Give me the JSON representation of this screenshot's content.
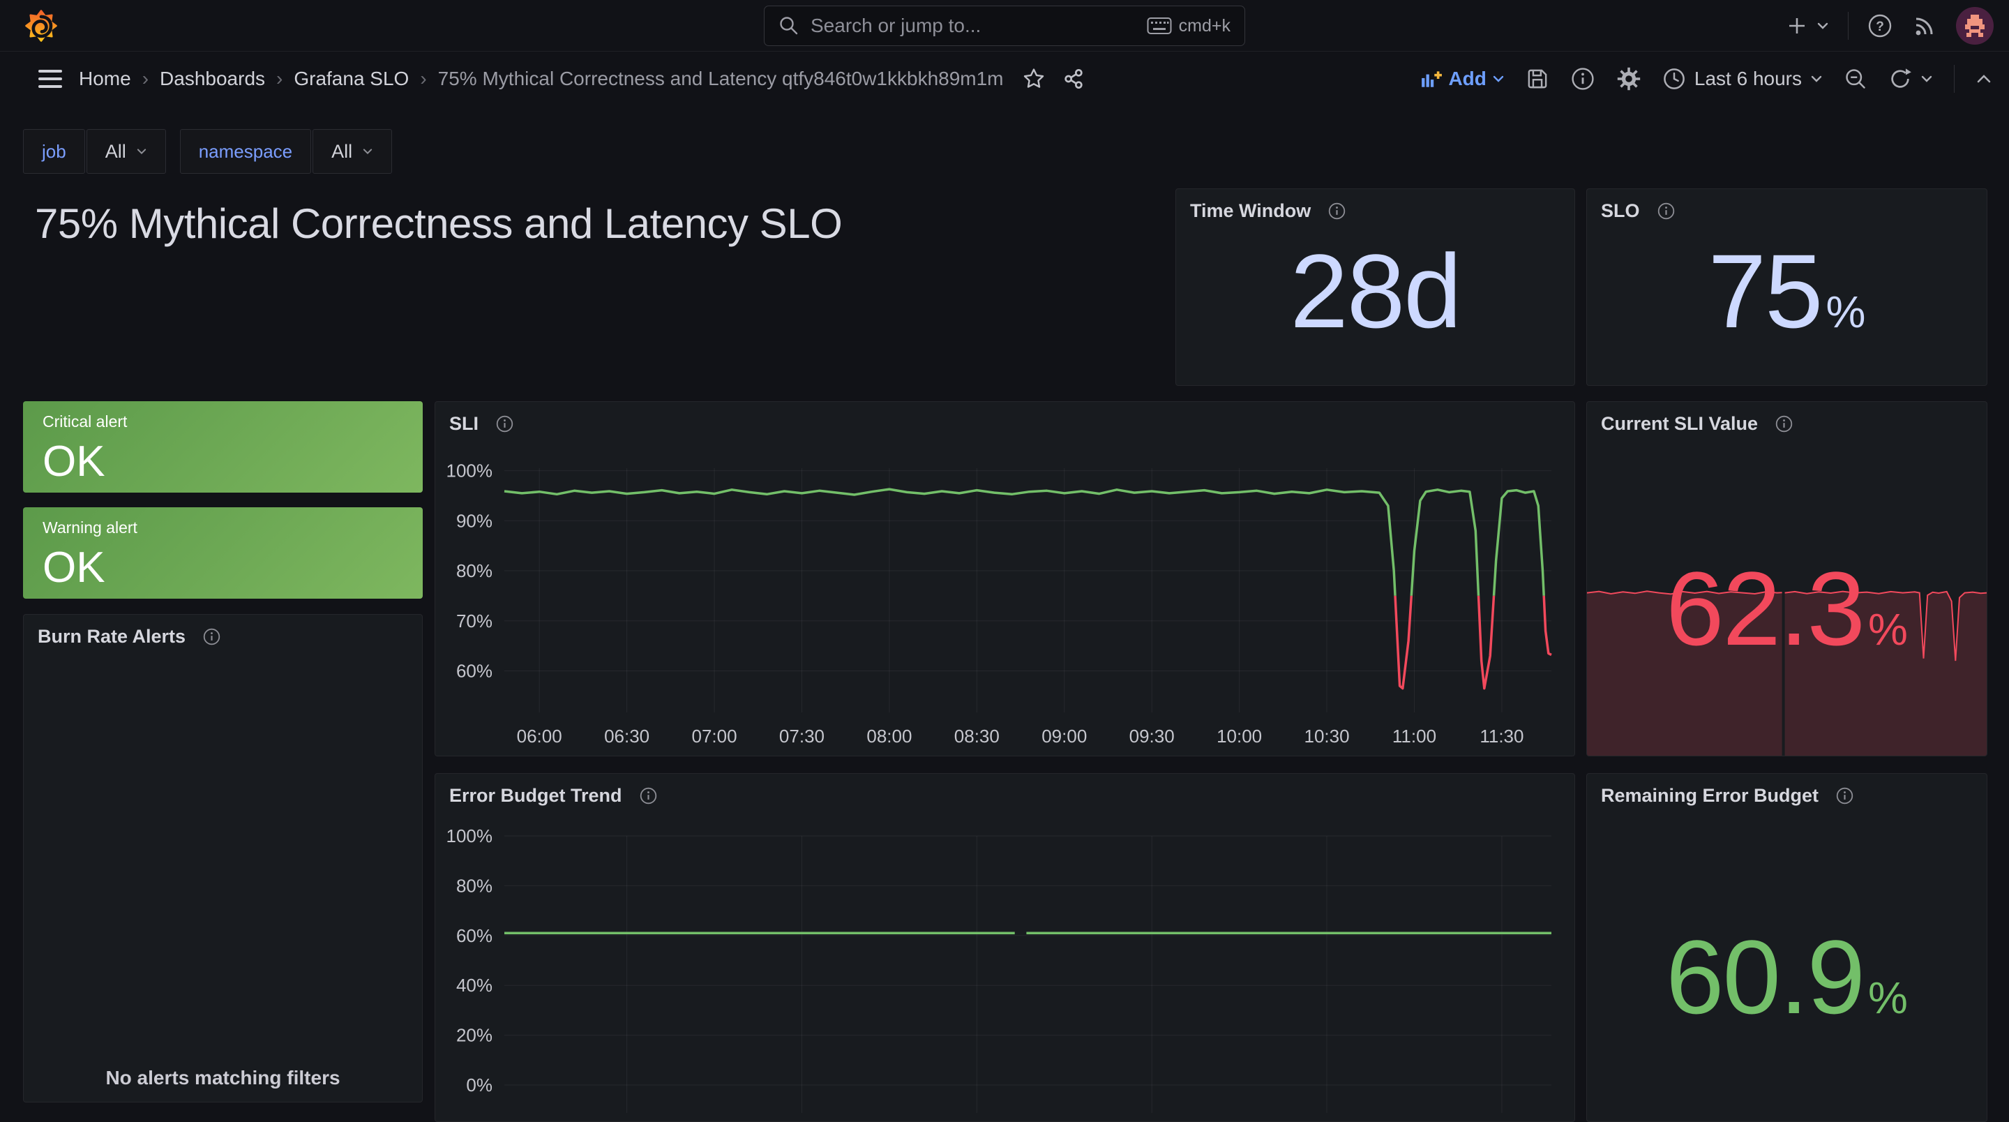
{
  "topbar": {
    "search_placeholder": "Search or jump to...",
    "shortcut": "cmd+k"
  },
  "nav": {
    "breadcrumbs": [
      "Home",
      "Dashboards",
      "Grafana SLO",
      "75% Mythical Correctness and Latency qtfy846t0w1kkbkh89m1m"
    ],
    "add_label": "Add",
    "time_range": "Last 6 hours"
  },
  "variables": [
    {
      "label": "job",
      "value": "All"
    },
    {
      "label": "namespace",
      "value": "All"
    }
  ],
  "title": "75% Mythical Correctness and Latency SLO",
  "panels": {
    "time_window": {
      "title": "Time Window",
      "value": "28d",
      "suffix": ""
    },
    "slo": {
      "title": "SLO",
      "value": "75",
      "suffix": "%"
    },
    "critical": {
      "label": "Critical alert",
      "status": "OK"
    },
    "warning": {
      "label": "Warning alert",
      "status": "OK"
    },
    "burn_rate": {
      "title": "Burn Rate Alerts",
      "empty": "No alerts matching filters"
    },
    "sli": {
      "title": "SLI"
    },
    "current_sli": {
      "title": "Current SLI Value",
      "value": "62.3",
      "suffix": "%"
    },
    "eb_trend": {
      "title": "Error Budget Trend"
    },
    "remaining_eb": {
      "title": "Remaining Error Budget",
      "value": "60.9",
      "suffix": "%"
    }
  },
  "colors": {
    "green": "#73BF69",
    "red": "#F2495C",
    "stat_blue": "#CDD9FF",
    "link_blue": "#6e9fff",
    "grid": "rgba(204,204,220,0.08)",
    "axis_text": "#c5c6cd"
  },
  "chart_data": [
    {
      "id": "sli",
      "type": "line",
      "title": "SLI",
      "unit": "%",
      "threshold": 75,
      "line_color": "#73BF69",
      "below_color": "#F2495C",
      "xlim_minutes": [
        348,
        707
      ],
      "ylim": [
        51.7,
        100.5
      ],
      "y_ticks": [
        100,
        90,
        80,
        70,
        60
      ],
      "x_ticks": [
        {
          "t": 360,
          "label": "06:00"
        },
        {
          "t": 390,
          "label": "06:30"
        },
        {
          "t": 420,
          "label": "07:00"
        },
        {
          "t": 450,
          "label": "07:30"
        },
        {
          "t": 480,
          "label": "08:00"
        },
        {
          "t": 510,
          "label": "08:30"
        },
        {
          "t": 540,
          "label": "09:00"
        },
        {
          "t": 570,
          "label": "09:30"
        },
        {
          "t": 600,
          "label": "10:00"
        },
        {
          "t": 630,
          "label": "10:30"
        },
        {
          "t": 660,
          "label": "11:00"
        },
        {
          "t": 690,
          "label": "11:30"
        }
      ],
      "points": [
        [
          348,
          95.9
        ],
        [
          354,
          95.5
        ],
        [
          360,
          95.8
        ],
        [
          366,
          95.3
        ],
        [
          372,
          96.0
        ],
        [
          378,
          95.6
        ],
        [
          384,
          95.9
        ],
        [
          390,
          95.4
        ],
        [
          396,
          95.7
        ],
        [
          402,
          96.1
        ],
        [
          408,
          95.5
        ],
        [
          414,
          95.8
        ],
        [
          420,
          95.4
        ],
        [
          426,
          96.2
        ],
        [
          432,
          95.7
        ],
        [
          438,
          95.3
        ],
        [
          444,
          95.9
        ],
        [
          450,
          95.5
        ],
        [
          456,
          96.0
        ],
        [
          462,
          95.6
        ],
        [
          468,
          95.2
        ],
        [
          474,
          95.8
        ],
        [
          480,
          96.3
        ],
        [
          486,
          95.7
        ],
        [
          492,
          95.4
        ],
        [
          498,
          95.9
        ],
        [
          504,
          95.5
        ],
        [
          510,
          96.1
        ],
        [
          516,
          95.6
        ],
        [
          522,
          95.3
        ],
        [
          528,
          95.8
        ],
        [
          534,
          96.0
        ],
        [
          540,
          95.5
        ],
        [
          546,
          95.9
        ],
        [
          552,
          95.4
        ],
        [
          558,
          96.2
        ],
        [
          564,
          95.6
        ],
        [
          570,
          95.9
        ],
        [
          576,
          95.5
        ],
        [
          582,
          95.8
        ],
        [
          588,
          96.1
        ],
        [
          594,
          95.5
        ],
        [
          600,
          95.7
        ],
        [
          606,
          96.0
        ],
        [
          612,
          95.4
        ],
        [
          618,
          95.8
        ],
        [
          624,
          95.5
        ],
        [
          630,
          96.2
        ],
        [
          636,
          95.7
        ],
        [
          642,
          95.9
        ],
        [
          648,
          95.6
        ],
        [
          651,
          93
        ],
        [
          653,
          80
        ],
        [
          655,
          57
        ],
        [
          656,
          56.5
        ],
        [
          658,
          66
        ],
        [
          660,
          84
        ],
        [
          662,
          94
        ],
        [
          664,
          95.8
        ],
        [
          668,
          96.2
        ],
        [
          672,
          95.7
        ],
        [
          676,
          96.0
        ],
        [
          679,
          95.8
        ],
        [
          681,
          88
        ],
        [
          683,
          62
        ],
        [
          684,
          56.5
        ],
        [
          686,
          63
        ],
        [
          688,
          82
        ],
        [
          690,
          94.5
        ],
        [
          692,
          95.9
        ],
        [
          695,
          96.1
        ],
        [
          698,
          95.6
        ],
        [
          701,
          95.9
        ],
        [
          702.5,
          93
        ],
        [
          704,
          80
        ],
        [
          705,
          68
        ],
        [
          706,
          63.5
        ],
        [
          707,
          63.2
        ]
      ]
    },
    {
      "id": "error_budget_trend",
      "type": "line",
      "title": "Error Budget Trend",
      "unit": "%",
      "value": 61,
      "line_color": "#73BF69",
      "xlim_minutes": [
        348,
        707
      ],
      "ylim": [
        0,
        100
      ],
      "y_ticks": [
        100,
        80,
        60,
        40,
        20,
        0
      ],
      "x_grid_minutes": [
        390,
        450,
        510,
        570,
        630,
        690
      ],
      "segments": [
        [
          [
            348,
            61
          ],
          [
            523,
            61
          ]
        ],
        [
          [
            527,
            61
          ],
          [
            707,
            61
          ]
        ]
      ]
    },
    {
      "id": "current_sli_spark",
      "type": "area",
      "title": "Current SLI Value sparkline",
      "unit": "%",
      "line_color": "#F2495C",
      "fill_color": "rgba(242,73,92,0.18)",
      "ylim": [
        56.0,
        63.8
      ],
      "segments": [
        [
          [
            0,
            62.3
          ],
          [
            3,
            62.42
          ],
          [
            6,
            62.22
          ],
          [
            9,
            62.38
          ],
          [
            12,
            62.26
          ],
          [
            15,
            62.44
          ],
          [
            18,
            62.3
          ],
          [
            21,
            62.2
          ],
          [
            24,
            62.4
          ],
          [
            27,
            62.28
          ],
          [
            30,
            62.42
          ],
          [
            33,
            62.25
          ],
          [
            36,
            62.38
          ],
          [
            39,
            62.3
          ],
          [
            42,
            62.22
          ],
          [
            45,
            62.4
          ],
          [
            47.5,
            62.3
          ],
          [
            48.8,
            62.32
          ]
        ],
        [
          [
            49.5,
            62.3
          ],
          [
            52,
            62.4
          ],
          [
            55,
            62.24
          ],
          [
            58,
            62.38
          ],
          [
            61,
            62.28
          ],
          [
            64,
            62.42
          ],
          [
            67,
            62.3
          ],
          [
            70,
            62.36
          ],
          [
            73,
            62.24
          ],
          [
            76,
            62.4
          ],
          [
            79,
            62.3
          ],
          [
            82,
            62.38
          ],
          [
            83.2,
            62.3
          ],
          [
            84.2,
            56.8
          ],
          [
            85.2,
            62.1
          ],
          [
            86.5,
            62.35
          ],
          [
            88,
            62.28
          ],
          [
            90,
            62.4
          ],
          [
            91.2,
            61.6
          ],
          [
            92.2,
            56.6
          ],
          [
            93.2,
            61.9
          ],
          [
            94.5,
            62.3
          ],
          [
            96.5,
            62.36
          ],
          [
            98.5,
            62.26
          ],
          [
            100,
            62.3
          ]
        ]
      ]
    }
  ]
}
